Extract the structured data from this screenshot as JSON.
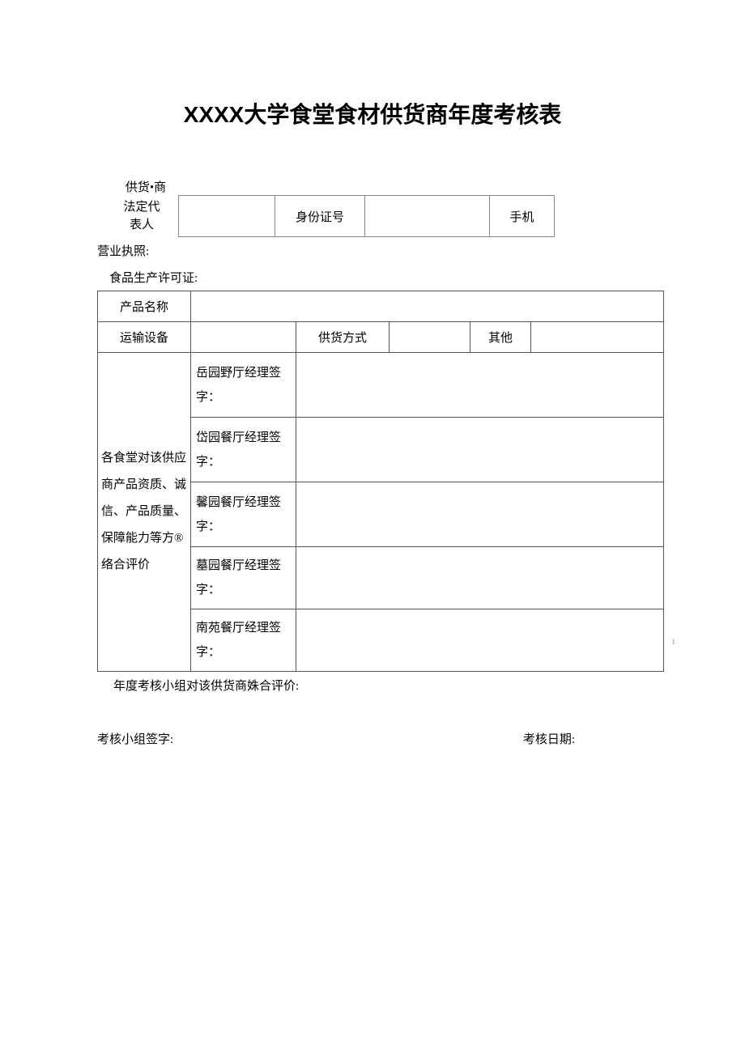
{
  "title": "XXXX大学食堂食材供货商年度考核表",
  "header": {
    "supplier_label": "供货•商",
    "legal_rep_label": "法定代\n表人",
    "id_label": "身份证号",
    "phone_label": "手机"
  },
  "lines": {
    "biz_license": "营业执照:",
    "food_permit": "食品生产许可证:"
  },
  "table": {
    "product_name_label": "产品名称",
    "transport_label": "运输设备",
    "supply_method_label": "供货方式",
    "other_label": "其他",
    "eval_label": "各食堂对该供应商产品资质、诚信、产品质量、保障能力等方®络合评价",
    "sig1": "岳园野厅经理签字：",
    "sig2": "岱园餐厅经理签字：",
    "sig3": "馨园餐厅经理签字：",
    "sig4": "墓园餐厅经理签字：",
    "sig5": "南苑餐厅经理签字："
  },
  "footer": {
    "group_eval": "年度考核小组对该供货商姝合评价:",
    "group_sign": "考核小组签字:",
    "date_label": "考核日期:"
  },
  "sidenote": "1",
  "colors": {
    "text": "#000000",
    "border": "#555555",
    "light_border": "#888888",
    "background": "#ffffff"
  },
  "typography": {
    "title_fontsize": 28,
    "body_fontsize": 15,
    "title_family": "SimHei",
    "body_family": "SimSun"
  }
}
